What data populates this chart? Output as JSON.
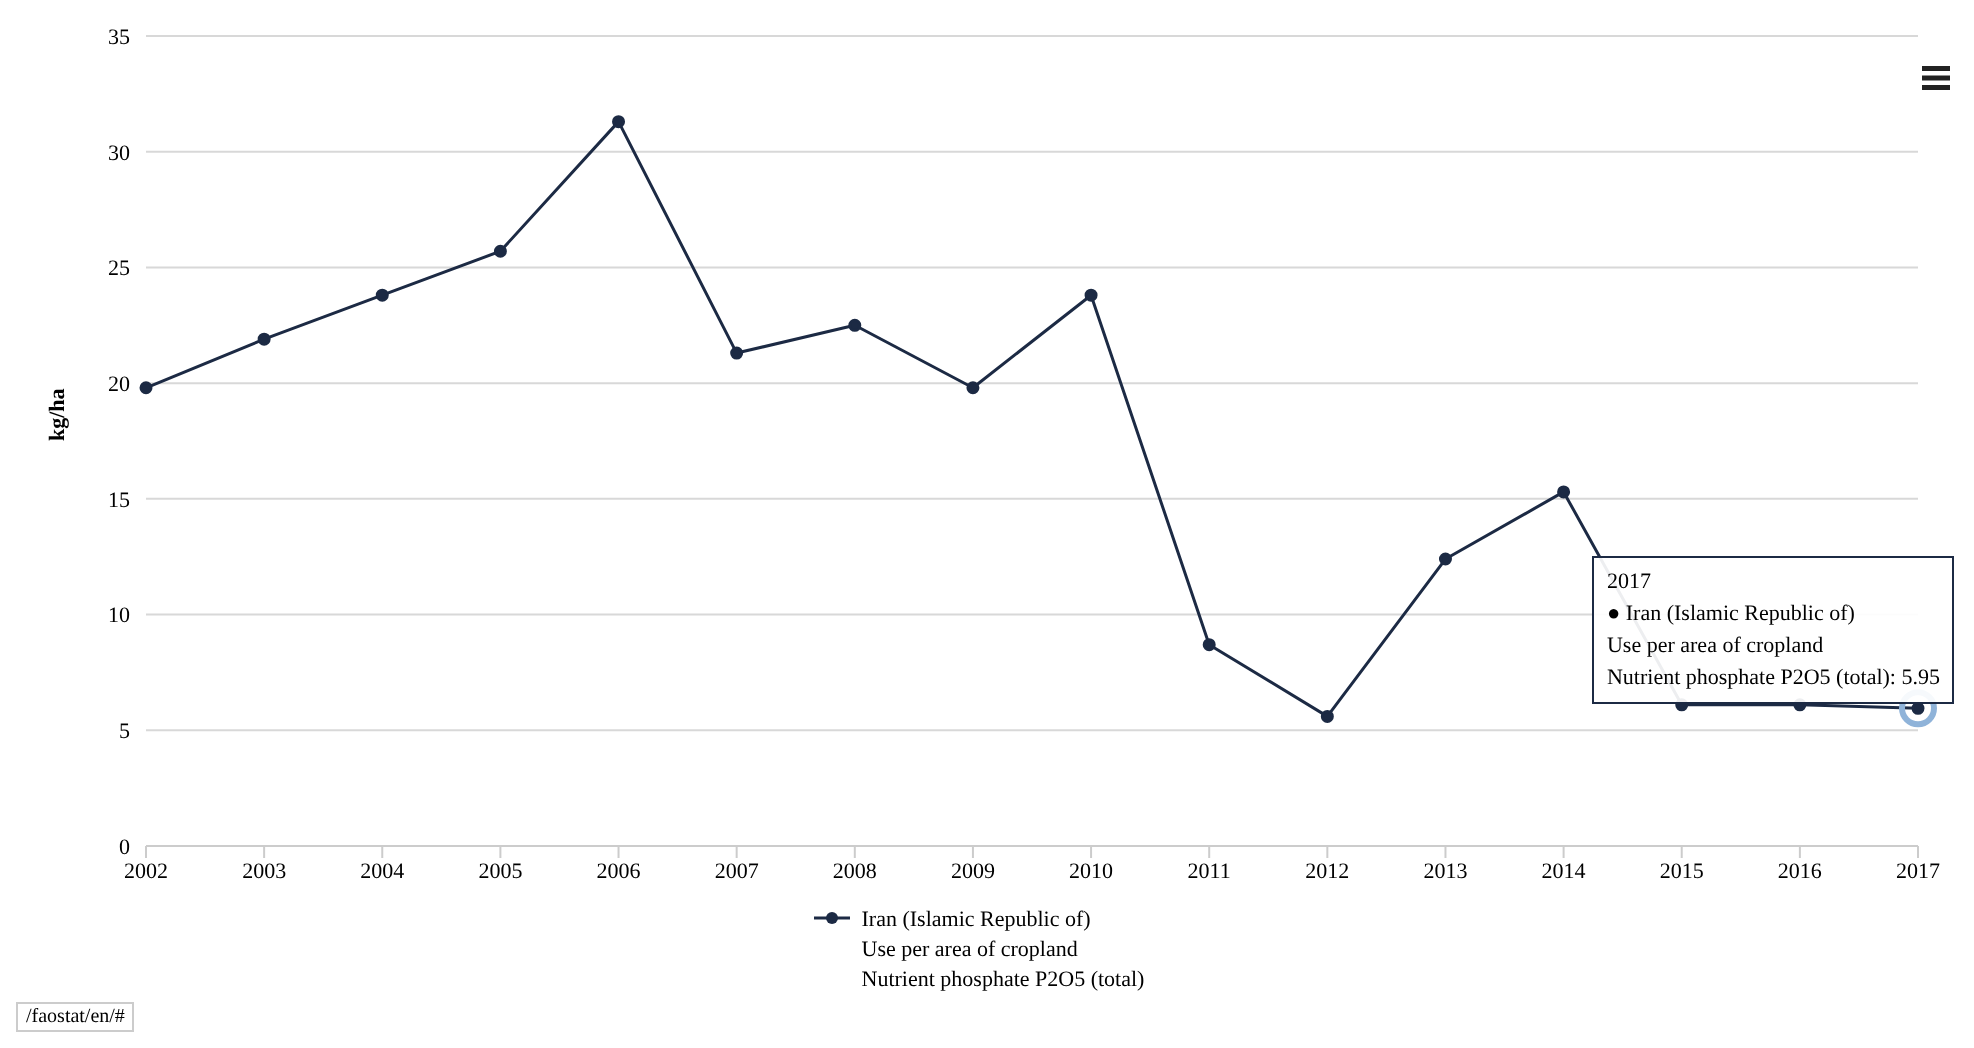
{
  "chart_data": {
    "type": "line",
    "ylabel": "kg/ha",
    "categories": [
      "2002",
      "2003",
      "2004",
      "2005",
      "2006",
      "2007",
      "2008",
      "2009",
      "2010",
      "2011",
      "2012",
      "2013",
      "2014",
      "2015",
      "2016",
      "2017"
    ],
    "series": [
      {
        "name": "Iran (Islamic Republic of)\nUse per area of cropland\nNutrient phosphate P2O5 (total)",
        "color": "#1c2a44",
        "values": [
          19.8,
          21.9,
          23.8,
          25.7,
          31.3,
          21.3,
          22.5,
          19.8,
          23.8,
          8.7,
          5.6,
          12.4,
          15.3,
          6.1,
          6.1,
          5.95
        ]
      }
    ],
    "ylim": [
      0,
      35
    ],
    "yticks": [
      0,
      5,
      10,
      15,
      20,
      25,
      30,
      35
    ],
    "grid": "y",
    "legend": "bottom",
    "marker": "circle",
    "line_style": "solid",
    "annotations": [
      {
        "text": "2017\n● Iran (Islamic Republic of)\nUse per area of cropland\nNutrient phosphate P2O5 (total): 5.95",
        "x": "2017",
        "y": 5.95
      },
      "/faostat/en/#"
    ]
  }
}
